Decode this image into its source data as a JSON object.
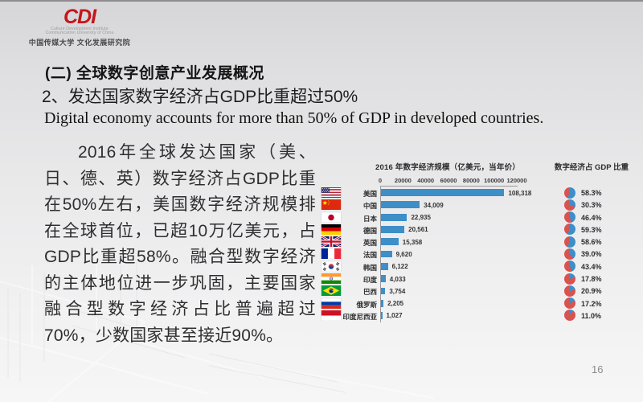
{
  "logo": {
    "acronym": "CDI",
    "line1": "Culture Development Institute",
    "line2": "Communication University of China",
    "chinese": "中国传媒大学 文化发展研究院",
    "brand_color": "#C4161C"
  },
  "headings": {
    "section": "(二) 全球数字创意产业发展概况",
    "subtitle": "2、发达国家数字经济占GDP比重超过50%",
    "subtitle_en": "Digital economy accounts for more than 50% of GDP in developed countries."
  },
  "paragraph": "2016年全球发达国家（美、日、德、英）数字经济占GDP比重在50%左右，美国数字经济规模排在全球首位，已超10万亿美元，占GDP比重超58%。融合型数字经济的主体地位进一步巩固，主要国家融合型数字经济占比普遍超过70%，少数国家甚至接近90%。",
  "chart_data": {
    "type": "bar",
    "title": "2016 年数字经济规模（亿美元，当年价）",
    "secondary_title": "数字经济占 GDP 比重",
    "xlabel": "",
    "ylabel": "",
    "xlim": [
      0,
      120000
    ],
    "x_ticks": [
      "0",
      "20000",
      "40000",
      "60000",
      "80000",
      "100000",
      "120000"
    ],
    "grid": false,
    "legend_position": "none",
    "categories": [
      "美国",
      "中国",
      "日本",
      "德国",
      "英国",
      "法国",
      "韩国",
      "印度",
      "巴西",
      "俄罗斯",
      "印度尼西亚"
    ],
    "flags": [
      "flag-usa",
      "flag-china",
      "flag-japan",
      "flag-germany",
      "flag-uk",
      "flag-france",
      "flag-south-korea",
      "flag-india",
      "flag-brazil",
      "flag-russia",
      "flag-indonesia"
    ],
    "series": [
      {
        "name": "数字经济规模(亿美元)",
        "values": [
          108318,
          34009,
          22935,
          20561,
          15358,
          9620,
          6122,
          4033,
          3754,
          2205,
          1027
        ]
      },
      {
        "name": "数字经济占GDP比重(%)",
        "values": [
          58.3,
          30.3,
          46.4,
          59.3,
          58.6,
          39.0,
          43.4,
          17.8,
          20.9,
          17.2,
          11.0
        ]
      }
    ],
    "value_labels": [
      "108,318",
      "34,009",
      "22,935",
      "20,561",
      "15,358",
      "9,620",
      "6,122",
      "4,033",
      "3,754",
      "2,205",
      "1,027"
    ],
    "gdp_share_labels": [
      "58.3%",
      "30.3%",
      "46.4%",
      "59.3%",
      "58.6%",
      "39.0%",
      "43.4%",
      "17.8%",
      "20.9%",
      "17.2%",
      "11.0%"
    ],
    "bar_color": "#3E8EC8",
    "pie_colors": {
      "share": "#3E8EC8",
      "remainder": "#D9534F"
    }
  },
  "footer": {
    "page_number": "16"
  }
}
